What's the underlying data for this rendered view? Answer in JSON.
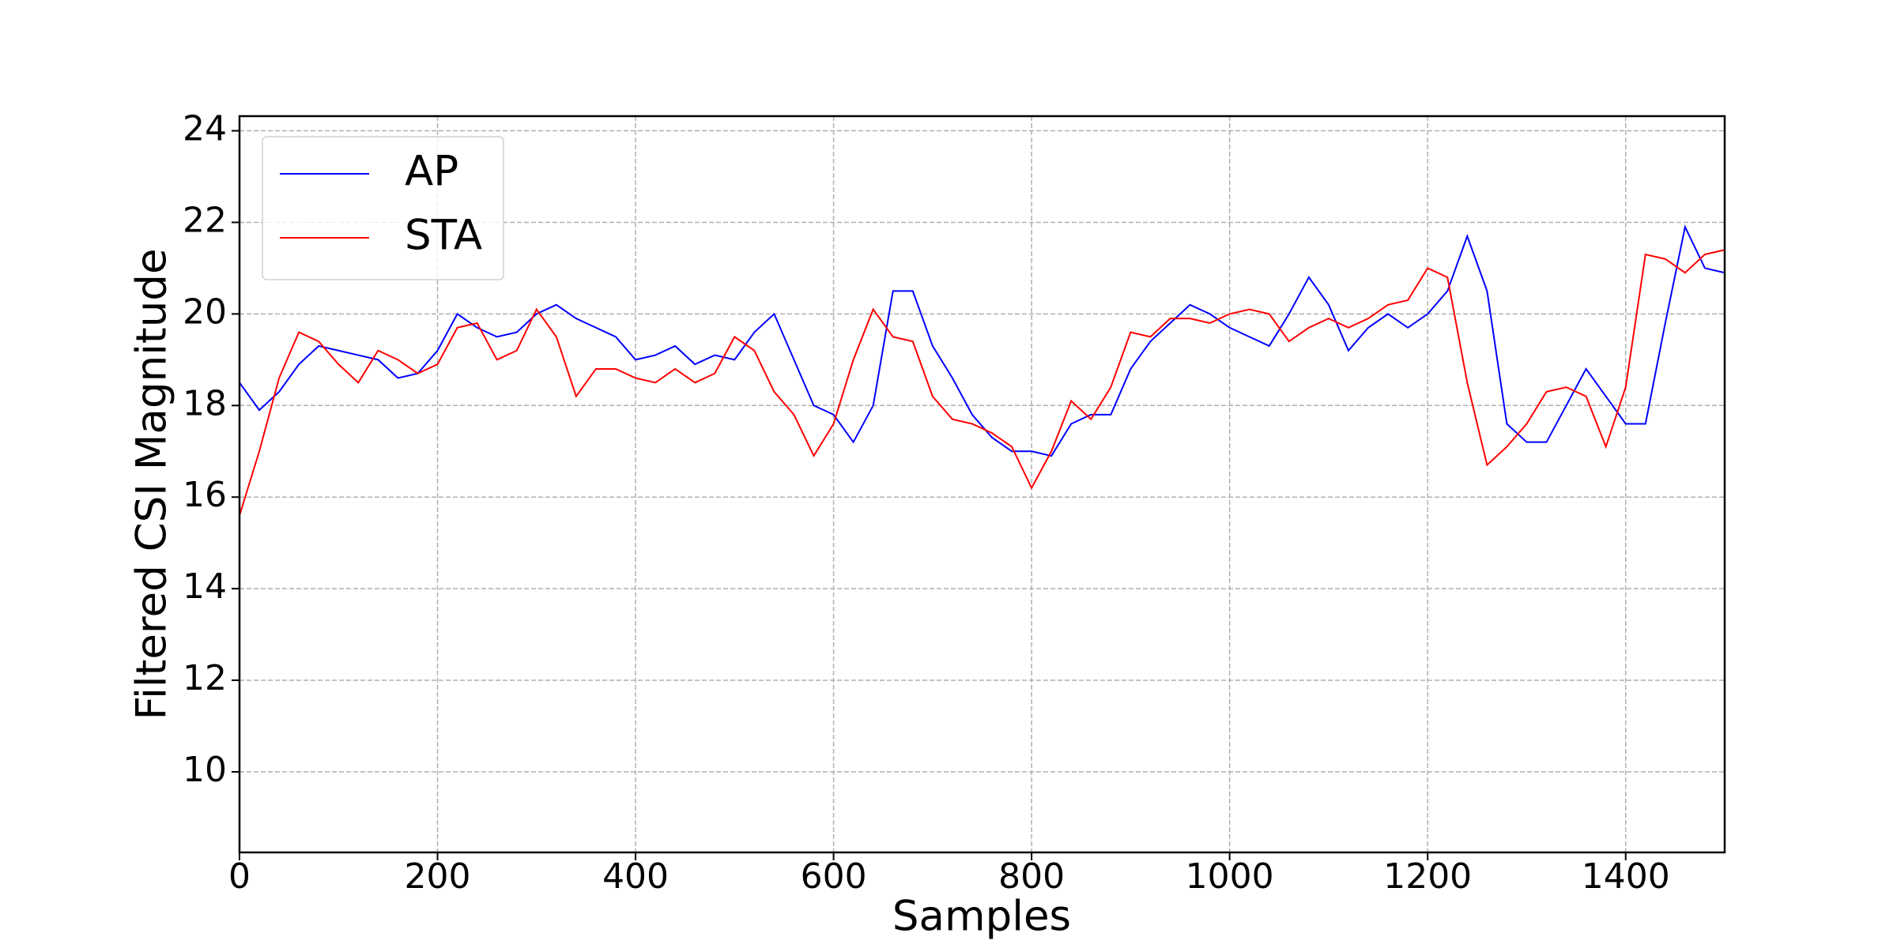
{
  "chart_data": {
    "type": "line",
    "xlabel": "Samples",
    "ylabel": "Filtered CSI Magnitude",
    "x": [
      0,
      20,
      40,
      60,
      80,
      100,
      120,
      140,
      160,
      180,
      200,
      220,
      240,
      260,
      280,
      300,
      320,
      340,
      360,
      380,
      400,
      420,
      440,
      460,
      480,
      500,
      520,
      540,
      560,
      580,
      600,
      620,
      640,
      660,
      680,
      700,
      720,
      740,
      760,
      780,
      800,
      820,
      840,
      860,
      880,
      900,
      920,
      940,
      960,
      980,
      1000,
      1020,
      1040,
      1060,
      1080,
      1100,
      1120,
      1140,
      1160,
      1180,
      1200,
      1220,
      1240,
      1260,
      1280,
      1300,
      1320,
      1340,
      1360,
      1380,
      1400,
      1420,
      1440,
      1460,
      1480,
      1500
    ],
    "series": [
      {
        "name": "AP",
        "color": "#0000ff",
        "values": [
          18.5,
          17.9,
          18.3,
          18.9,
          19.3,
          19.2,
          19.1,
          19.0,
          18.6,
          18.7,
          19.2,
          20.0,
          19.7,
          19.5,
          19.6,
          20.0,
          20.2,
          19.9,
          19.7,
          19.5,
          19.0,
          19.1,
          19.3,
          18.9,
          19.1,
          19.0,
          19.6,
          20.0,
          19.0,
          18.0,
          17.8,
          17.2,
          18.0,
          20.5,
          20.5,
          19.3,
          18.6,
          17.8,
          17.3,
          17.0,
          17.0,
          16.9,
          17.6,
          17.8,
          17.8,
          18.8,
          19.4,
          19.8,
          20.2,
          20.0,
          19.7,
          19.5,
          19.3,
          20.0,
          20.8,
          20.2,
          19.2,
          19.7,
          20.0,
          19.7,
          20.0,
          20.5,
          21.7,
          20.5,
          17.6,
          17.2,
          17.2,
          18.0,
          18.8,
          18.2,
          17.6,
          17.6,
          19.8,
          21.9,
          21.0,
          20.9
        ]
      },
      {
        "name": "STA",
        "color": "#ff0000",
        "values": [
          15.6,
          17.0,
          18.6,
          19.6,
          19.4,
          18.9,
          18.5,
          19.2,
          19.0,
          18.7,
          18.9,
          19.7,
          19.8,
          19.0,
          19.2,
          20.1,
          19.5,
          18.2,
          18.8,
          18.8,
          18.6,
          18.5,
          18.8,
          18.5,
          18.7,
          19.5,
          19.2,
          18.3,
          17.8,
          16.9,
          17.6,
          19.0,
          20.1,
          19.5,
          19.4,
          18.2,
          17.7,
          17.6,
          17.4,
          17.1,
          16.2,
          17.0,
          18.1,
          17.7,
          18.4,
          19.6,
          19.5,
          19.9,
          19.9,
          19.8,
          20.0,
          20.1,
          20.0,
          19.4,
          19.7,
          19.9,
          19.7,
          19.9,
          20.2,
          20.3,
          21.0,
          20.8,
          18.5,
          16.7,
          17.1,
          17.6,
          18.3,
          18.4,
          18.2,
          17.1,
          18.4,
          21.3,
          21.2,
          20.9,
          21.3,
          21.4
        ]
      }
    ],
    "xlim": [
      0,
      1500
    ],
    "ylim": [
      8.24,
      24.32
    ],
    "xticks": [
      0,
      200,
      400,
      600,
      800,
      1000,
      1200,
      1400
    ],
    "yticks": [
      10,
      12,
      14,
      16,
      18,
      20,
      22,
      24
    ],
    "grid": true,
    "legend": "upper left"
  }
}
